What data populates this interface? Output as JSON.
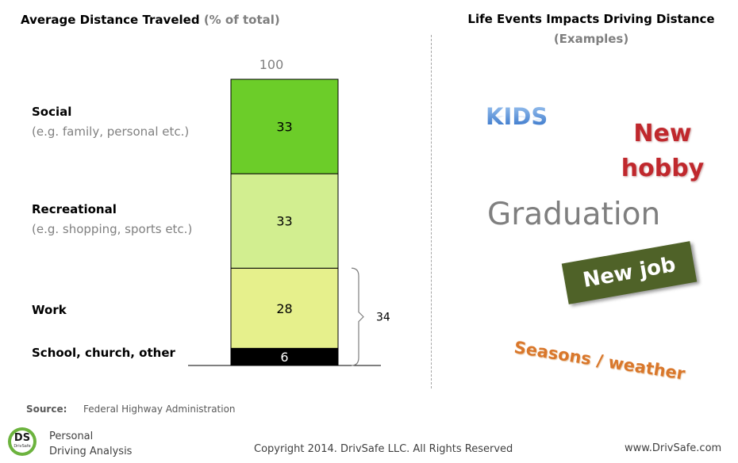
{
  "chart_data": {
    "type": "bar",
    "stacked": true,
    "title": "Average Distance Traveled",
    "title_suffix": "(% of total)",
    "total_label": "100",
    "ylim": [
      0,
      100
    ],
    "segments": [
      {
        "name": "School, church, other",
        "note": "",
        "value": 6,
        "color": "#000000",
        "label_color": "#ffffff"
      },
      {
        "name": "Work",
        "note": "",
        "value": 28,
        "color": "#e6f08c",
        "label_color": "#000000"
      },
      {
        "name": "Recreational",
        "note": "(e.g. shopping, sports etc.)",
        "value": 33,
        "color": "#d2ee90",
        "label_color": "#000000"
      },
      {
        "name": "Social",
        "note": "(e.g. family, personal etc.)",
        "value": 33,
        "color": "#6ccd29",
        "label_color": "#000000"
      }
    ],
    "bracket": {
      "from_segment": 0,
      "to_segment": 1,
      "label": "34"
    }
  },
  "right_panel": {
    "title": "Life Events Impacts Driving Distance",
    "subtitle": "(Examples)",
    "kids": "KIDS",
    "hobby_line1": "New",
    "hobby_line2": "hobby",
    "graduation": "Graduation",
    "new_job": "New job",
    "seasons": "Seasons / weather"
  },
  "footer": {
    "source_label": "Source:",
    "source_value": "Federal Highway Administration",
    "logo_text": "DS",
    "logo_small": "DrivSafe",
    "brand_line1": "Personal",
    "brand_line2": "Driving Analysis",
    "copyright": "Copyright 2014. DrivSafe LLC. All Rights Reserved",
    "website": "www.DrivSafe.com"
  }
}
